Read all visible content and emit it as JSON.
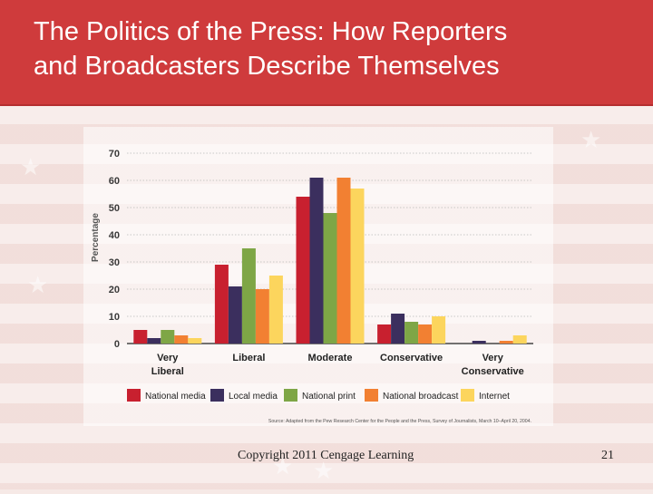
{
  "slide": {
    "title_line1": "The Politics of the Press: How Reporters",
    "title_line2": "and Broadcasters Describe Themselves",
    "copyright": "Copyright 2011 Cengage Learning",
    "page_number": "21"
  },
  "chart_data": {
    "type": "bar",
    "ylabel": "Percentage",
    "ylim": [
      0,
      70
    ],
    "yticks": [
      0,
      10,
      20,
      30,
      40,
      50,
      60,
      70
    ],
    "grid": true,
    "legend_position": "bottom",
    "categories": [
      [
        "Very",
        "Liberal"
      ],
      [
        "Liberal"
      ],
      [
        "Moderate"
      ],
      [
        "Conservative"
      ],
      [
        "Very",
        "Conservative"
      ]
    ],
    "series": [
      {
        "name": "National media",
        "color": "#c8202f",
        "values": [
          5,
          29,
          54,
          7,
          0
        ]
      },
      {
        "name": "Local media",
        "color": "#3b2f5e",
        "values": [
          2,
          21,
          61,
          11,
          1
        ]
      },
      {
        "name": "National print",
        "color": "#7ea646",
        "values": [
          5,
          35,
          48,
          8,
          0
        ]
      },
      {
        "name": "National broadcast",
        "color": "#f28032",
        "values": [
          3,
          20,
          61,
          7,
          1
        ]
      },
      {
        "name": "Internet",
        "color": "#fcd55d",
        "values": [
          2,
          25,
          57,
          10,
          3
        ]
      }
    ],
    "source": "Source: Adapted from the Pew Research Center for the People and the Press, Survey of Journalists, March 10–April 20, 2004."
  }
}
